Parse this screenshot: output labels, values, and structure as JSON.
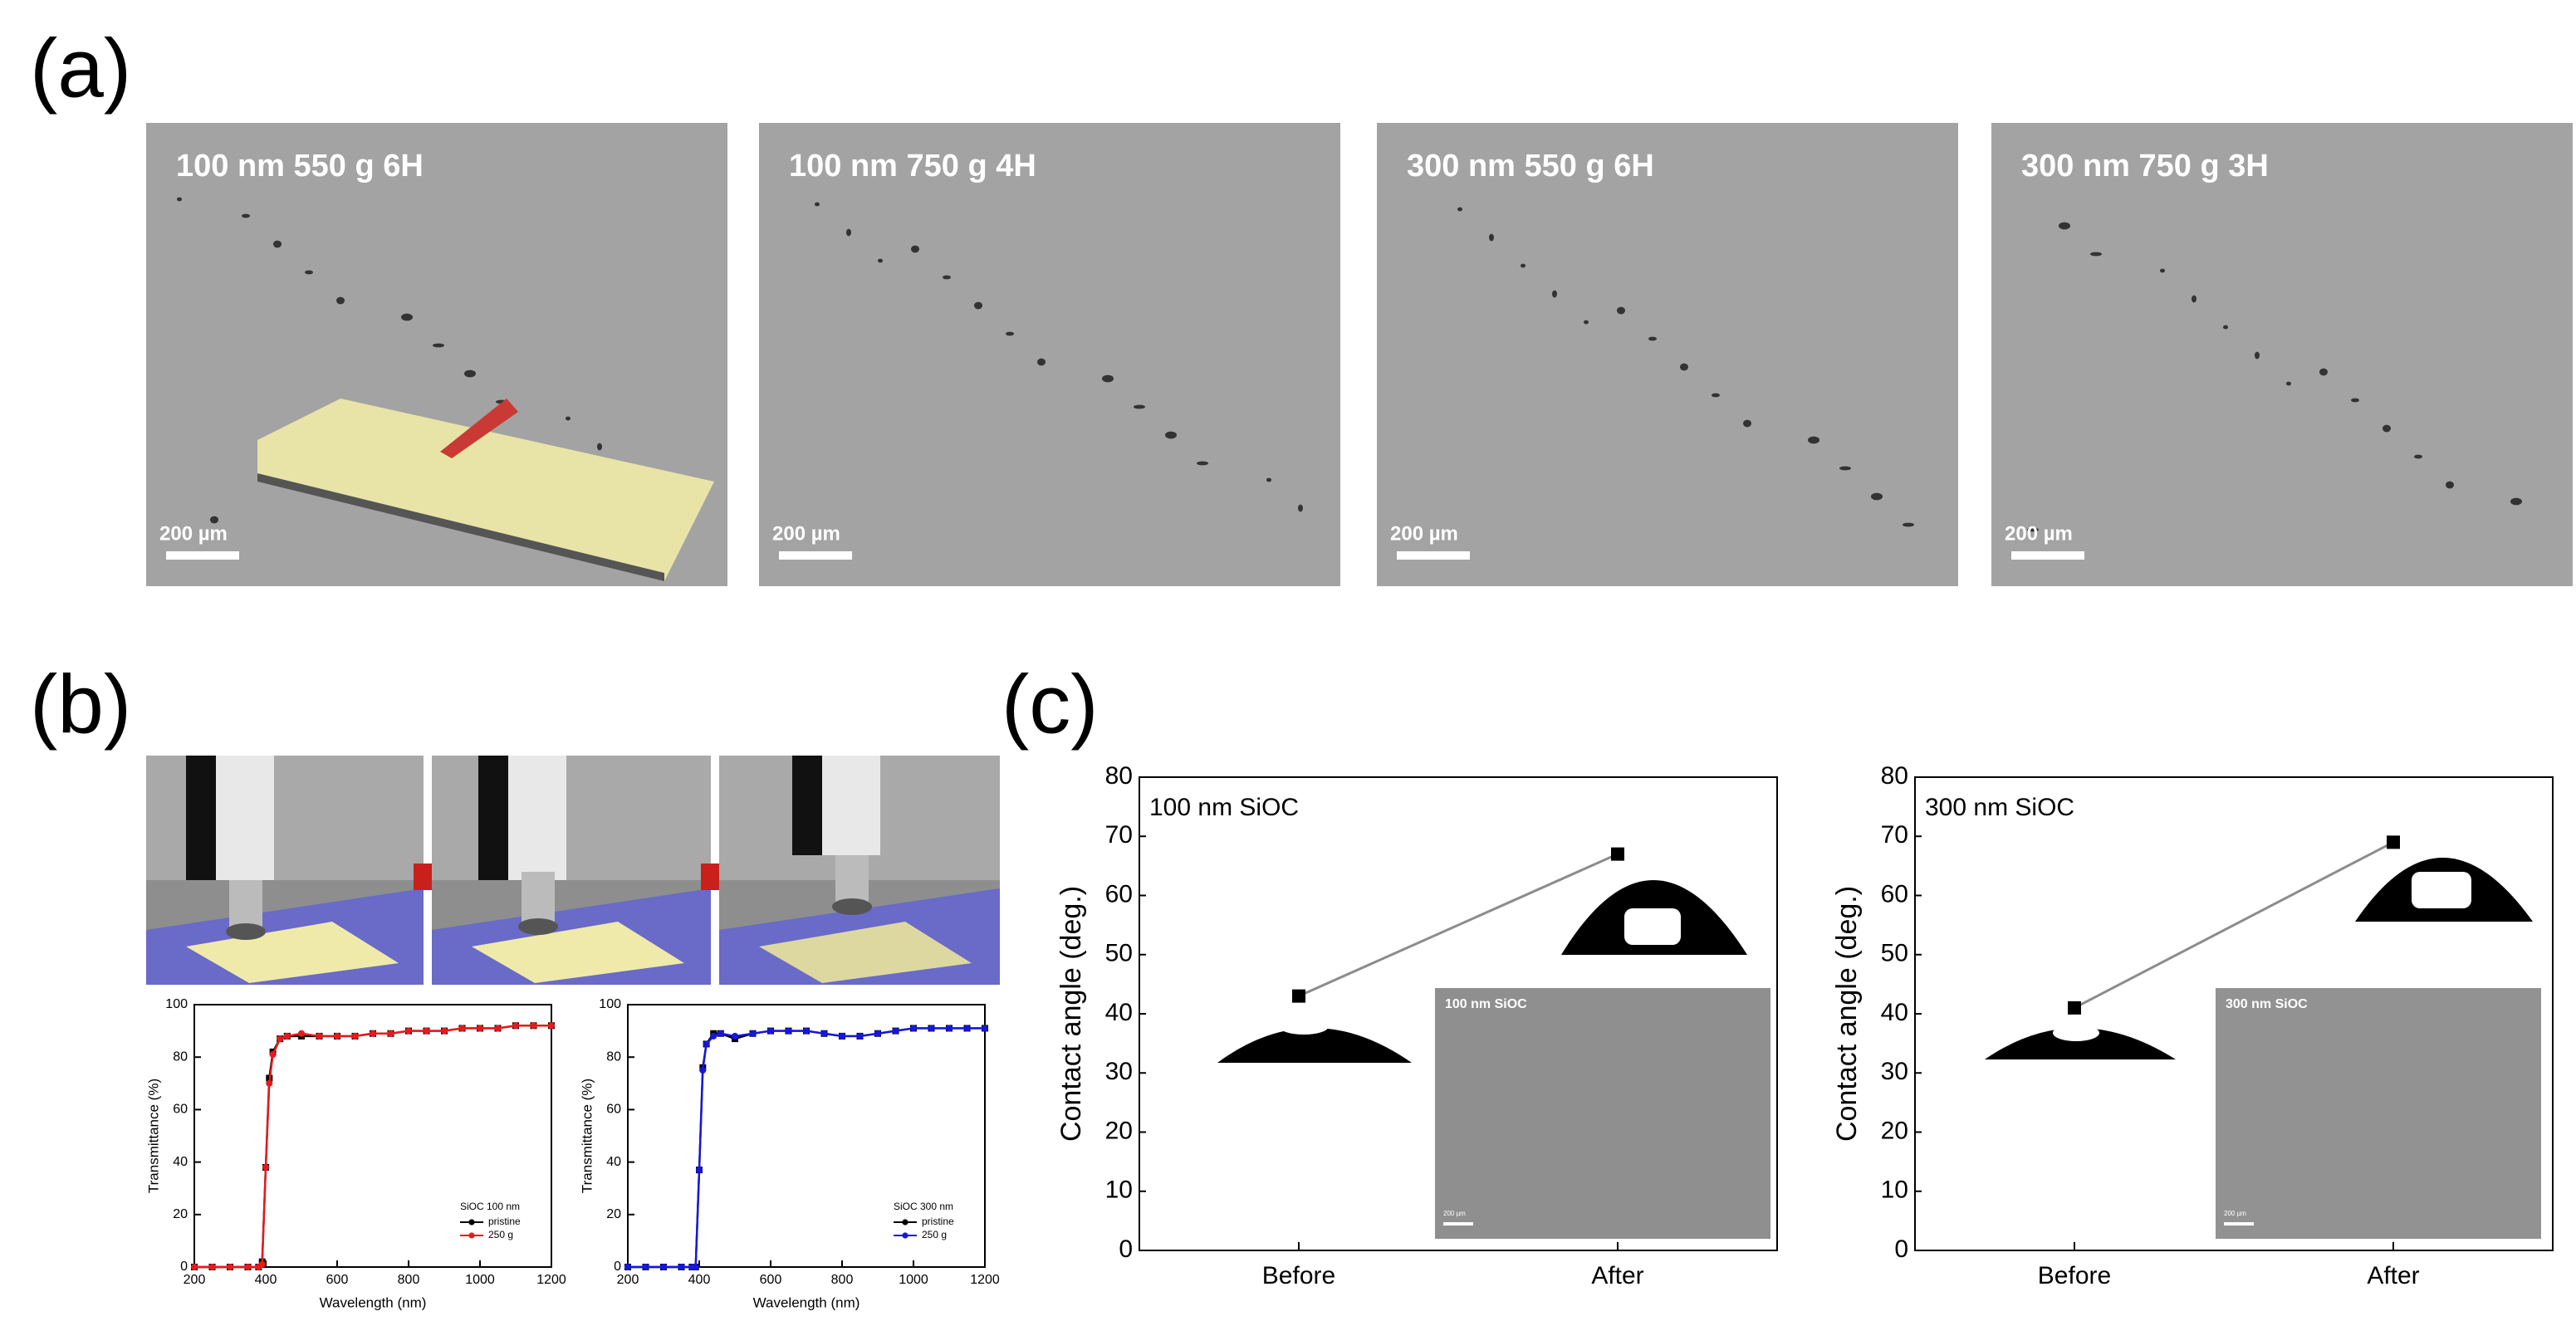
{
  "panel_labels": [
    "(a)",
    "(b)",
    "(c)"
  ],
  "micrographs": [
    {
      "label": "100 nm 550 g 6H",
      "scale_bar": "200 µm"
    },
    {
      "label": "100 nm 750 g 4H",
      "scale_bar": "200 µm"
    },
    {
      "label": "300 nm 550 g 6H",
      "scale_bar": "200 µm"
    },
    {
      "label": "300 nm 750 g 3H",
      "scale_bar": "200 µm"
    }
  ],
  "chart_data": [
    {
      "type": "line",
      "x_label": "Wavelength (nm)",
      "y_label": "Transmittance (%)",
      "x": [
        200,
        250,
        300,
        350,
        380,
        390,
        400,
        410,
        420,
        440,
        460,
        500,
        550,
        600,
        650,
        700,
        750,
        800,
        850,
        900,
        950,
        1000,
        1050,
        1100,
        1150,
        1200
      ],
      "series": [
        {
          "name": "pristine",
          "color": "#000000",
          "values": [
            0,
            0,
            0,
            0,
            0,
            2,
            38,
            72,
            82,
            87,
            88,
            88,
            88,
            88,
            88,
            89,
            89,
            90,
            90,
            90,
            91,
            91,
            91,
            92,
            92,
            92
          ]
        },
        {
          "name": "250 g",
          "color": "#e8191c",
          "values": [
            0,
            0,
            0,
            0,
            0,
            1,
            38,
            70,
            81,
            87,
            88,
            89,
            88,
            88,
            88,
            89,
            89,
            90,
            90,
            90,
            91,
            91,
            91,
            92,
            92,
            92
          ]
        }
      ],
      "legend_title": "SiOC 100 nm",
      "legend": "lower right",
      "xlim": [
        200,
        1200
      ],
      "xticks": [
        200,
        400,
        600,
        800,
        1000,
        1200
      ],
      "ylim": [
        0,
        100
      ],
      "yticks": [
        0,
        20,
        40,
        60,
        80,
        100
      ]
    },
    {
      "type": "line",
      "x_label": "Wavelength (nm)",
      "y_label": "Transmittance (%)",
      "x": [
        200,
        250,
        300,
        350,
        380,
        390,
        400,
        410,
        420,
        440,
        460,
        500,
        550,
        600,
        650,
        700,
        750,
        800,
        850,
        900,
        950,
        1000,
        1050,
        1100,
        1150,
        1200
      ],
      "series": [
        {
          "name": "pristine",
          "color": "#000000",
          "values": [
            0,
            0,
            0,
            0,
            0,
            0,
            37,
            76,
            85,
            89,
            89,
            87,
            89,
            90,
            90,
            90,
            89,
            88,
            88,
            89,
            90,
            91,
            91,
            91,
            91,
            91
          ]
        },
        {
          "name": "250 g",
          "color": "#1616e0",
          "values": [
            0,
            0,
            0,
            0,
            0,
            0,
            37,
            75,
            85,
            88,
            89,
            88,
            89,
            90,
            90,
            90,
            89,
            88,
            88,
            89,
            90,
            91,
            91,
            91,
            91,
            91
          ]
        }
      ],
      "legend_title": "SiOC 300 nm",
      "legend": "lower right",
      "xlim": [
        200,
        1200
      ],
      "xticks": [
        200,
        400,
        600,
        800,
        1000,
        1200
      ],
      "ylim": [
        0,
        100
      ],
      "yticks": [
        0,
        20,
        40,
        60,
        80,
        100
      ]
    },
    {
      "type": "line",
      "annotation": "100 nm SiOC",
      "y_label": "Contact angle (deg.)",
      "categories": [
        "Before",
        "After"
      ],
      "values": [
        43,
        67
      ],
      "color": "#000000",
      "line_color": "#8c8c8c",
      "inset": {
        "label": "100 nm SiOC",
        "scale_bar": "200 µm"
      },
      "ylim": [
        0,
        80
      ],
      "yticks": [
        0,
        10,
        20,
        30,
        40,
        50,
        60,
        70,
        80
      ]
    },
    {
      "type": "line",
      "annotation": "300 nm SiOC",
      "y_label": "Contact angle (deg.)",
      "categories": [
        "Before",
        "After"
      ],
      "values": [
        41,
        69
      ],
      "color": "#000000",
      "line_color": "#8c8c8c",
      "inset": {
        "label": "300 nm SiOC",
        "scale_bar": "200 µm"
      },
      "ylim": [
        0,
        80
      ],
      "yticks": [
        0,
        10,
        20,
        30,
        40,
        50,
        60,
        70,
        80
      ]
    }
  ]
}
